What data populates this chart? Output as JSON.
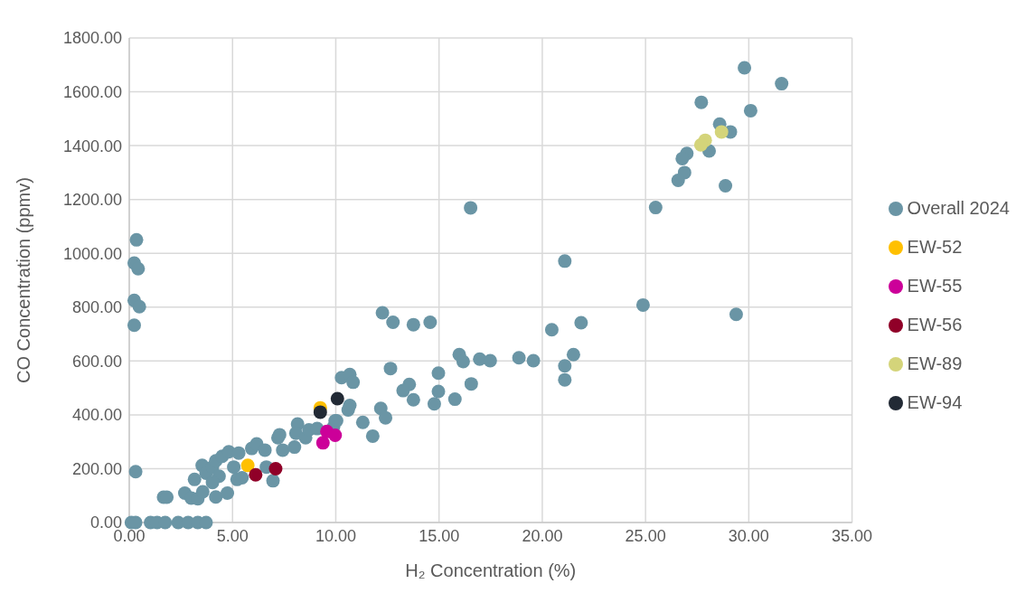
{
  "chart_data": {
    "type": "scatter",
    "xlabel": "H₂ Concentration (%)",
    "ylabel": "CO Concentration (ppmv)",
    "xlim": [
      0,
      35
    ],
    "ylim": [
      0,
      1800
    ],
    "xticks": [
      {
        "value": 0,
        "label": "0.00"
      },
      {
        "value": 5,
        "label": "5.00"
      },
      {
        "value": 10,
        "label": "10.00"
      },
      {
        "value": 15,
        "label": "15.00"
      },
      {
        "value": 20,
        "label": "20.00"
      },
      {
        "value": 25,
        "label": "25.00"
      },
      {
        "value": 30,
        "label": "30.00"
      },
      {
        "value": 35,
        "label": "35.00"
      }
    ],
    "yticks": [
      {
        "value": 0,
        "label": "0.00"
      },
      {
        "value": 200,
        "label": "200.00"
      },
      {
        "value": 400,
        "label": "400.00"
      },
      {
        "value": 600,
        "label": "600.00"
      },
      {
        "value": 800,
        "label": "800.00"
      },
      {
        "value": 1000,
        "label": "1000.00"
      },
      {
        "value": 1200,
        "label": "1200.00"
      },
      {
        "value": 1400,
        "label": "1400.00"
      },
      {
        "value": 1600,
        "label": "1600.00"
      },
      {
        "value": 1800,
        "label": "1800.00"
      }
    ],
    "grid": true,
    "legend": "right",
    "marker": "circle",
    "series": [
      {
        "name": "Overall 2024",
        "color": "#6a95a5",
        "x": [
          0.35,
          0.24,
          0.43,
          0.24,
          0.49,
          0.24,
          0.31,
          0.1,
          0.31,
          1.03,
          1.35,
          1.74,
          2.37,
          2.85,
          3.32,
          3.72,
          1.66,
          1.82,
          2.69,
          3.0,
          3.32,
          3.56,
          4.19,
          4.75,
          3.16,
          3.53,
          3.72,
          4.03,
          4.19,
          4.5,
          4.82,
          5.3,
          5.06,
          5.22,
          5.46,
          4.35,
          4.03,
          5.93,
          6.17,
          6.57,
          6.64,
          6.96,
          7.2,
          7.28,
          7.43,
          8.0,
          8.15,
          8.07,
          8.54,
          8.7,
          9.1,
          9.97,
          9.89,
          10.04,
          10.28,
          10.68,
          10.84,
          10.68,
          10.6,
          11.31,
          11.79,
          12.18,
          12.41,
          12.26,
          12.77,
          13.76,
          14.57,
          12.65,
          15.98,
          16.17,
          16.97,
          17.48,
          18.87,
          19.57,
          14.97,
          13.56,
          13.26,
          13.76,
          14.97,
          14.77,
          15.77,
          16.56,
          16.53,
          20.46,
          21.51,
          21.09,
          21.09,
          21.09,
          21.88,
          24.88,
          29.39,
          29.79,
          31.59,
          27.7,
          30.09,
          28.59,
          29.11,
          28.08,
          27.0,
          26.78,
          26.89,
          26.58,
          28.87,
          25.49
        ],
        "values": [
          1050,
          964,
          943,
          825,
          802,
          733,
          189,
          0,
          0,
          0,
          0,
          0,
          0,
          0,
          0,
          0,
          94,
          94,
          109,
          91,
          88,
          114,
          95,
          109,
          160,
          212,
          183,
          206,
          229,
          246,
          263,
          258,
          206,
          160,
          166,
          172,
          149,
          275,
          292,
          269,
          206,
          155,
          315,
          326,
          269,
          280,
          366,
          332,
          315,
          344,
          349,
          378,
          355,
          378,
          538,
          550,
          521,
          435,
          418,
          372,
          321,
          424,
          389,
          779,
          744,
          735,
          744,
          572,
          624,
          598,
          607,
          601,
          612,
          601,
          555,
          513,
          490,
          456,
          487,
          441,
          458,
          515,
          1169,
          716,
          624,
          582,
          530,
          971,
          742,
          808,
          773,
          1689,
          1630,
          1561,
          1530,
          1480,
          1451,
          1380,
          1371,
          1352,
          1300,
          1271,
          1251,
          1170
        ]
      },
      {
        "name": "EW-52",
        "color": "#ffc000",
        "x": [
          5.74,
          9.25
        ],
        "values": [
          212,
          426
        ]
      },
      {
        "name": "EW-55",
        "color": "#cc0099",
        "x": [
          9.38,
          9.57,
          9.97
        ],
        "values": [
          296,
          338,
          324
        ]
      },
      {
        "name": "EW-56",
        "color": "#900028",
        "x": [
          6.12,
          7.09
        ],
        "values": [
          177,
          200
        ]
      },
      {
        "name": "EW-89",
        "color": "#d4d47a",
        "x": [
          28.68,
          27.89,
          27.68
        ],
        "values": [
          1451,
          1420,
          1403
        ]
      },
      {
        "name": "EW-94",
        "color": "#222a35",
        "x": [
          9.25,
          10.08
        ],
        "values": [
          410,
          460
        ]
      }
    ]
  }
}
